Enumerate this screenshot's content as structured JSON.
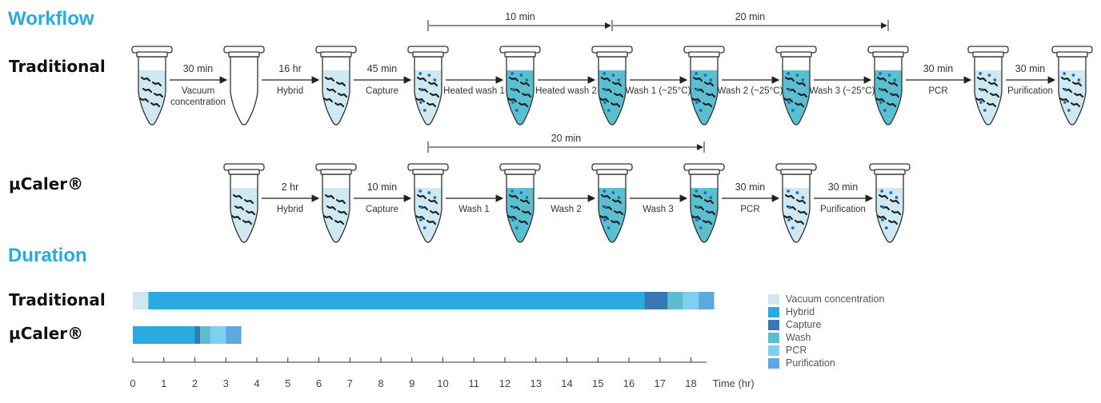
{
  "headings": {
    "workflow": "Workflow",
    "duration": "Duration"
  },
  "traditional": {
    "label": "Traditional",
    "steps": [
      {
        "time": "30 min",
        "name": "Vacuum\nconcentration"
      },
      {
        "time": "16 hr",
        "name": "Hybrid"
      },
      {
        "time": "45 min",
        "name": "Capture"
      },
      {
        "time": "",
        "name": "Heated wash 1"
      },
      {
        "time": "",
        "name": "Heated wash 2"
      },
      {
        "time": "",
        "name": "Wash 1 (~25°C)"
      },
      {
        "time": "",
        "name": "Wash 2 (~25°C)"
      },
      {
        "time": "",
        "name": "Wash 3 (~25°C)"
      },
      {
        "time": "30 min",
        "name": "PCR"
      },
      {
        "time": "30 min",
        "name": "Purification"
      }
    ],
    "tubes": [
      "light",
      "empty",
      "light",
      "light",
      "teal",
      "teal",
      "teal",
      "teal",
      "teal",
      "light",
      "light"
    ],
    "spans": [
      {
        "label": "10 min",
        "from": 3,
        "to": 5
      },
      {
        "label": "20 min",
        "from": 5,
        "to": 8
      }
    ]
  },
  "ucaler": {
    "label": "µCaler®",
    "steps": [
      {
        "time": "2 hr",
        "name": "Hybrid"
      },
      {
        "time": "10 min",
        "name": "Capture"
      },
      {
        "time": "",
        "name": "Wash 1"
      },
      {
        "time": "",
        "name": "Wash 2"
      },
      {
        "time": "",
        "name": "Wash 3"
      },
      {
        "time": "30 min",
        "name": "PCR"
      },
      {
        "time": "30 min",
        "name": "Purification"
      }
    ],
    "tubes": [
      "light",
      "light",
      "light",
      "teal",
      "teal",
      "teal",
      "light",
      "light"
    ],
    "spans": [
      {
        "label": "20 min",
        "from": 2,
        "to": 5
      }
    ]
  },
  "chart_data": {
    "type": "bar",
    "orientation": "horizontal",
    "stacked": true,
    "categories": [
      "Traditional",
      "µCaler®"
    ],
    "xlabel": "Time (hr)",
    "xlim": [
      0,
      18.5
    ],
    "xticks": [
      0,
      1,
      2,
      3,
      4,
      5,
      6,
      7,
      8,
      9,
      10,
      11,
      12,
      13,
      14,
      15,
      16,
      17,
      18
    ],
    "series": [
      {
        "name": "Vacuum concentration",
        "color": "#cfe7f1",
        "values": [
          0.5,
          0
        ]
      },
      {
        "name": "Hybrid",
        "color": "#29abe2",
        "values": [
          16,
          2
        ]
      },
      {
        "name": "Capture",
        "color": "#3a78b5",
        "values": [
          0.75,
          0.17
        ]
      },
      {
        "name": "Wash",
        "color": "#5cbdcc",
        "values": [
          0.5,
          0.33
        ]
      },
      {
        "name": "PCR",
        "color": "#7fd0f0",
        "values": [
          0.5,
          0.5
        ]
      },
      {
        "name": "Purification",
        "color": "#5ba9e0",
        "values": [
          0.5,
          0.5
        ]
      }
    ],
    "legend_position": "right"
  }
}
